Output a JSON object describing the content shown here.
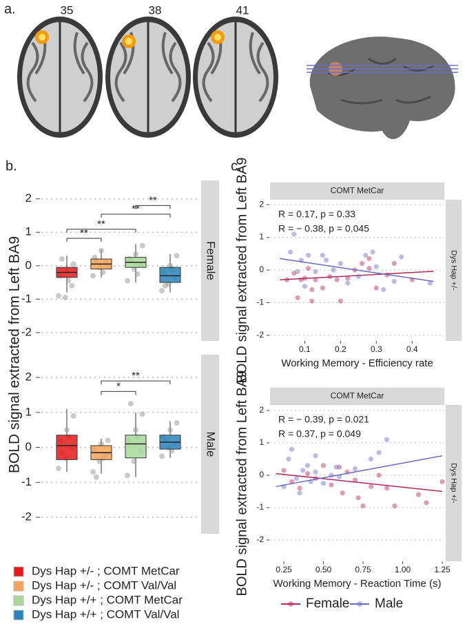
{
  "panel_labels": {
    "a": "a.",
    "b": "b.",
    "c": "c."
  },
  "slices": [
    "35",
    "38",
    "41"
  ],
  "chart_data": [
    {
      "type": "box",
      "ylabel": "BOLD signal extracted from Left BA9",
      "facet": "Female",
      "ylim": [
        -2.25,
        2.55
      ],
      "yticks": [
        -2,
        -1,
        0,
        1,
        2
      ],
      "grid": true,
      "groups": [
        {
          "name": "Dys Hap +/- ; COMT MetCar",
          "color": "#e31a1c",
          "min": -0.8,
          "q1": -0.35,
          "median": -0.2,
          "q3": -0.05,
          "max": 0.3,
          "points": [
            -0.9,
            -0.95,
            -0.6,
            -0.3,
            -0.15,
            0.05,
            0.2,
            -0.45
          ]
        },
        {
          "name": "Dys Hap +/- ; COMT Val/Val",
          "color": "#f5a35a",
          "min": -0.35,
          "q1": -0.1,
          "median": 0.05,
          "q3": 0.2,
          "max": 0.5,
          "points": [
            -0.3,
            -0.05,
            0.1,
            0.25,
            0.45,
            0.0,
            0.15,
            -0.2
          ]
        },
        {
          "name": "Dys Hap +/+ ; COMT MetCar",
          "color": "#a8d99a",
          "min": -0.5,
          "q1": -0.05,
          "median": 0.1,
          "q3": 0.25,
          "max": 0.65,
          "points": [
            -0.45,
            -0.1,
            0.05,
            0.2,
            0.35,
            0.6,
            0.15,
            -0.25
          ]
        },
        {
          "name": "Dys Hap +/+ ; COMT Val/Val",
          "color": "#2b83ba",
          "min": -0.8,
          "q1": -0.5,
          "median": -0.3,
          "q3": -0.05,
          "max": 0.35,
          "points": [
            -0.75,
            -0.55,
            -0.35,
            -0.2,
            0.0,
            0.3,
            -0.6,
            -0.1
          ]
        }
      ],
      "brackets": [
        {
          "from": 0,
          "to": 1,
          "y": 0.82,
          "label": "**"
        },
        {
          "from": 0,
          "to": 2,
          "y": 1.09,
          "label": "**"
        },
        {
          "from": 1,
          "to": 3,
          "y": 1.54,
          "label": "**"
        },
        {
          "from": 2,
          "to": 3,
          "y": 1.8,
          "label": "**"
        }
      ]
    },
    {
      "type": "box",
      "facet": "Male",
      "ylim": [
        -2.47,
        2.65
      ],
      "yticks": [
        -2,
        -1,
        0,
        1,
        2
      ],
      "grid": true,
      "groups": [
        {
          "color": "#e31a1c",
          "min": -0.7,
          "q1": -0.35,
          "median": 0.05,
          "q3": 0.35,
          "max": 1.1,
          "points": [
            -0.6,
            -0.3,
            0.0,
            0.2,
            0.5,
            0.9,
            -0.15,
            0.3
          ]
        },
        {
          "color": "#f5a35a",
          "min": -0.75,
          "q1": -0.35,
          "median": -0.15,
          "q3": 0.05,
          "max": 0.25,
          "points": [
            -0.7,
            -0.4,
            -0.2,
            -0.05,
            0.1,
            0.2,
            -0.85,
            -0.3
          ]
        },
        {
          "color": "#a8d99a",
          "min": -0.85,
          "q1": -0.3,
          "median": 0.1,
          "q3": 0.35,
          "max": 1.0,
          "points": [
            -0.8,
            -0.4,
            -0.1,
            0.2,
            0.5,
            0.95,
            1.25,
            0.3
          ]
        },
        {
          "color": "#2b83ba",
          "min": -0.3,
          "q1": -0.05,
          "median": 0.15,
          "q3": 0.35,
          "max": 0.75,
          "points": [
            -0.25,
            0.0,
            0.1,
            0.3,
            0.5,
            0.7,
            0.2,
            -0.1
          ]
        }
      ],
      "brackets": [
        {
          "from": 1,
          "to": 2,
          "y": 1.6,
          "label": "*"
        },
        {
          "from": 1,
          "to": 3,
          "y": 1.9,
          "label": "**"
        }
      ]
    },
    {
      "type": "scatter",
      "ylabel": "BOLD signal extracted from Left BA9",
      "xlabel": "Working Memory - Efficiency rate",
      "facet_top": "COMT MetCar",
      "facet_right": "Dys Hap +/-",
      "xlim": [
        0.003,
        0.49
      ],
      "xticks": [
        0.1,
        0.2,
        0.3,
        0.4
      ],
      "ylim": [
        -2.17,
        2.15
      ],
      "yticks": [
        -2,
        -1,
        0,
        1,
        2
      ],
      "grid": true,
      "series": [
        {
          "name": "Female",
          "color": "#b5245a",
          "annotation": "R = 0.17, p = 0.33",
          "x": [
            0.05,
            0.07,
            0.08,
            0.09,
            0.1,
            0.11,
            0.12,
            0.13,
            0.15,
            0.17,
            0.19,
            0.2,
            0.22,
            0.24,
            0.26,
            0.28,
            0.3,
            0.33,
            0.35,
            0.4,
            0.12,
            0.28
          ],
          "y": [
            -0.3,
            -0.1,
            -0.85,
            -0.3,
            -0.25,
            0.05,
            -0.6,
            -0.3,
            -0.55,
            -0.2,
            -0.3,
            -0.95,
            -0.25,
            0.0,
            0.2,
            0.05,
            -0.55,
            -0.15,
            0.2,
            -0.3,
            -0.95,
            0.35
          ],
          "fit": {
            "x": [
              0.03,
              0.46
            ],
            "y": [
              -0.3,
              -0.04
            ]
          }
        },
        {
          "name": "Male",
          "color": "#6a6bc0",
          "annotation": "R = − 0.38, p = 0.045",
          "x": [
            0.06,
            0.07,
            0.08,
            0.09,
            0.1,
            0.11,
            0.13,
            0.15,
            0.16,
            0.18,
            0.2,
            0.22,
            0.25,
            0.27,
            0.29,
            0.3,
            0.32,
            0.35,
            0.37,
            0.45
          ],
          "y": [
            0.55,
            1.1,
            -0.05,
            0.3,
            -0.5,
            0.45,
            -0.05,
            0.45,
            0.3,
            0.0,
            0.2,
            -0.4,
            -0.2,
            0.45,
            0.55,
            0.1,
            -0.6,
            -0.35,
            0.4,
            -0.4
          ],
          "fit": {
            "x": [
              0.03,
              0.46
            ],
            "y": [
              0.35,
              -0.35
            ]
          }
        }
      ]
    },
    {
      "type": "scatter",
      "ylabel": "BOLD signal extracted from Left BA9",
      "xlabel": "Working Memory - Reaction Time (s)",
      "facet_top": "COMT MetCar",
      "facet_right": "Dys Hap +/-",
      "xlim": [
        0.163,
        1.263
      ],
      "xticks": [
        {
          "value": 0.25,
          "label": "0.25"
        },
        {
          "value": 0.5,
          "label": "0.50"
        },
        {
          "value": 0.75,
          "label": "0.75"
        },
        {
          "value": 1,
          "label": "1.00"
        },
        {
          "value": 1.25,
          "label": "1.25"
        }
      ],
      "ylim": [
        -2.66,
        2.17
      ],
      "yticks": [
        -2,
        -1,
        0,
        1,
        2
      ],
      "grid": true,
      "series": [
        {
          "color": "#b5245a",
          "annotation": "R = − 0.39, p = 0.021",
          "x": [
            0.25,
            0.3,
            0.35,
            0.4,
            0.45,
            0.5,
            0.55,
            0.6,
            0.62,
            0.65,
            0.7,
            0.72,
            0.75,
            0.8,
            0.85,
            0.9,
            0.95,
            1.1,
            1.15,
            1.25
          ],
          "y": [
            0.15,
            -0.2,
            -0.4,
            0.05,
            -0.1,
            0.3,
            -0.3,
            0.25,
            -0.55,
            0.1,
            -0.15,
            -0.7,
            -0.95,
            -0.35,
            0.0,
            -0.4,
            -0.95,
            -0.6,
            -0.85,
            -0.2
          ],
          "fit": {
            "x": [
              0.2,
              1.25
            ],
            "y": [
              0.05,
              -0.5
            ]
          }
        },
        {
          "color": "#6a6bc0",
          "annotation": "R = 0.37, p = 0.049",
          "x": [
            0.25,
            0.28,
            0.3,
            0.33,
            0.35,
            0.37,
            0.4,
            0.42,
            0.45,
            0.5,
            0.55,
            0.58,
            0.6,
            0.7,
            0.8,
            0.85,
            0.9,
            0.45
          ],
          "y": [
            -0.35,
            0.5,
            0.8,
            -0.1,
            -0.55,
            0.15,
            0.3,
            -0.2,
            0.6,
            -0.25,
            0.0,
            0.25,
            -0.05,
            0.2,
            0.5,
            0.7,
            1.1,
            0.1
          ],
          "fit": {
            "x": [
              0.2,
              1.25
            ],
            "y": [
              -0.35,
              0.6
            ]
          }
        }
      ]
    }
  ]
}
